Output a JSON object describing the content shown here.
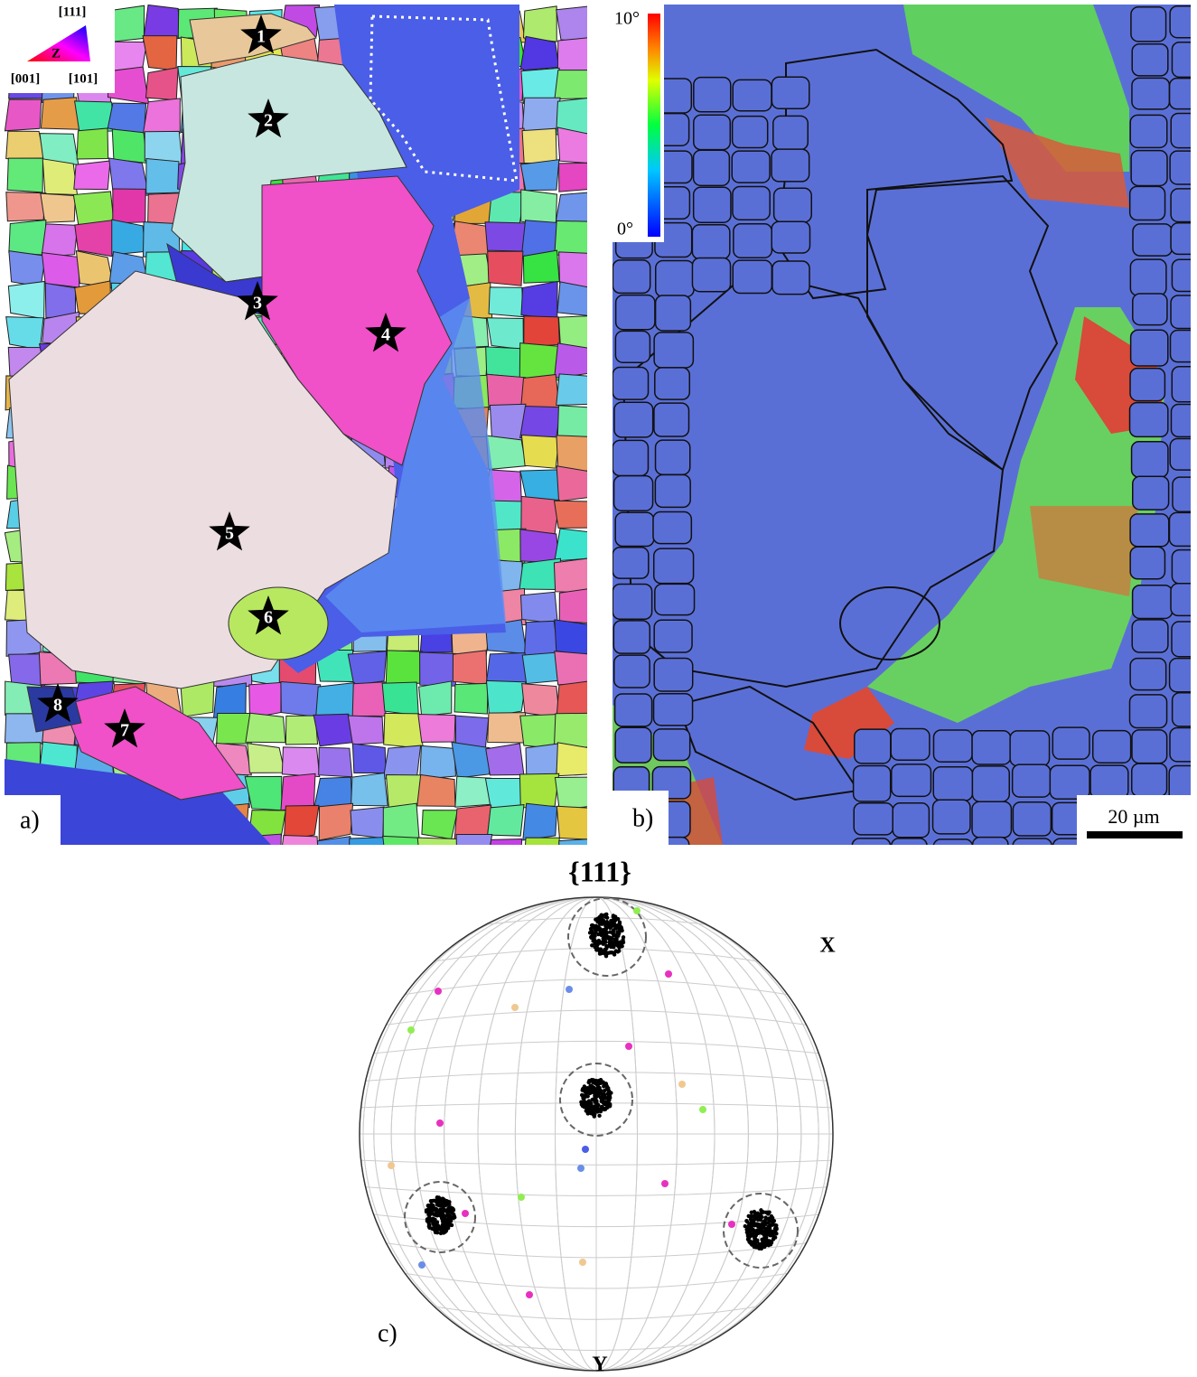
{
  "panel_a": {
    "label": "a)",
    "ipf_key": {
      "top": "[111]",
      "center": "Z",
      "left": "[001]",
      "right": "[101]"
    },
    "grain_markers": [
      "1",
      "2",
      "3",
      "4",
      "5",
      "6",
      "7",
      "8"
    ]
  },
  "panel_b": {
    "label": "b)",
    "colorbar": {
      "max_label": "10°",
      "min_label": "0°"
    },
    "scale_bar": "20 µm"
  },
  "panel_c": {
    "label": "c)",
    "title": "{111}",
    "axis_x": "X",
    "axis_y": "Y"
  }
}
